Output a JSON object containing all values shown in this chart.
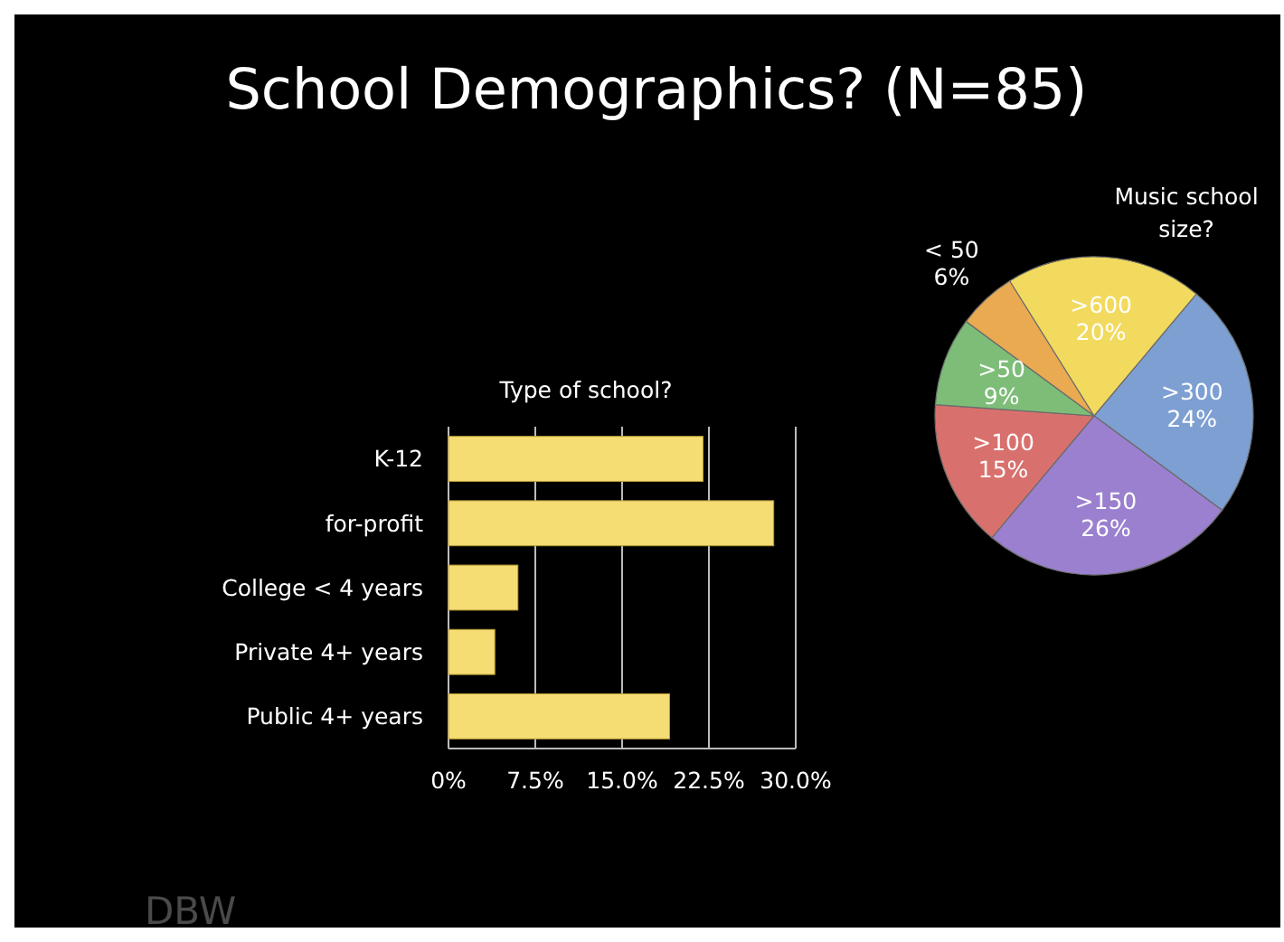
{
  "chart_data": [
    {
      "type": "bar",
      "orientation": "horizontal",
      "title": "Type of school?",
      "categories": [
        "K-12",
        "for-profit",
        "College < 4 years",
        "Private 4+ years",
        "Public 4+ years"
      ],
      "values": [
        22.0,
        28.1,
        6.0,
        4.0,
        19.1
      ],
      "color": "#f5dc73",
      "xlim": [
        0,
        30
      ],
      "xticks": [
        {
          "value": 0,
          "label": "0%"
        },
        {
          "value": 7.5,
          "label": "7.5%"
        },
        {
          "value": 15,
          "label": "15.0%"
        },
        {
          "value": 22.5,
          "label": "22.5%"
        },
        {
          "value": 30,
          "label": "30.0%"
        }
      ],
      "grid": "x",
      "annotations": [
        "School Demographics? (N=85)",
        "DBW"
      ]
    },
    {
      "type": "pie",
      "title": "Music school size?",
      "categories": [
        ">300",
        ">150",
        ">100",
        ">50",
        "< 50",
        ">600"
      ],
      "values": [
        24,
        26,
        15,
        9,
        6,
        20
      ],
      "colors": [
        "#7d9fd2",
        "#9a80cf",
        "#d8716d",
        "#7dbd78",
        "#e9aa52",
        "#f2da5e"
      ],
      "value_labels": [
        "24%",
        "26%",
        "15%",
        "9%",
        "6%",
        "20%"
      ]
    }
  ]
}
